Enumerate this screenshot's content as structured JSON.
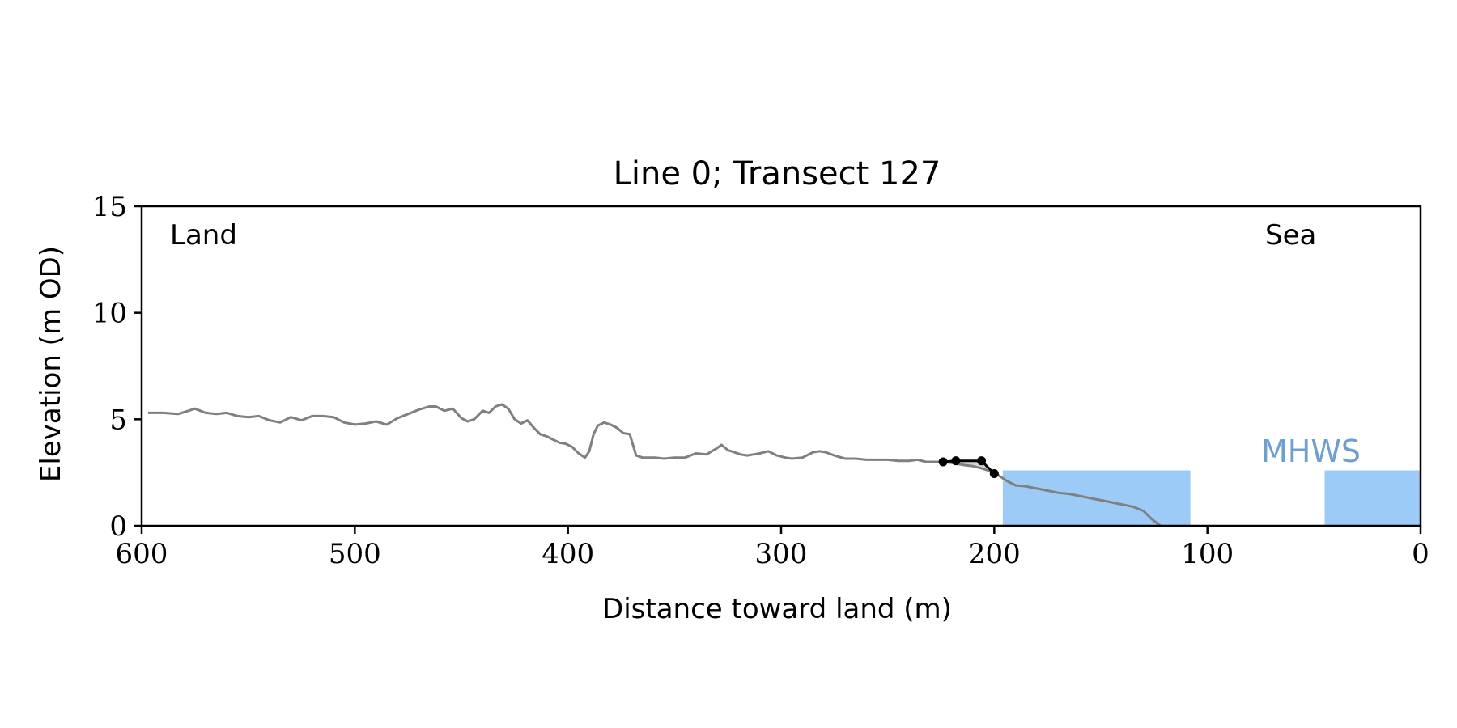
{
  "chart_data": {
    "type": "line",
    "title": "Line 0; Transect 127",
    "xlabel": "Distance toward land (m)",
    "ylabel": "Elevation (m OD)",
    "xlim": [
      600,
      0
    ],
    "ylim": [
      0,
      15
    ],
    "x_ticks": [
      600,
      500,
      400,
      300,
      200,
      100,
      0
    ],
    "y_ticks": [
      0,
      5,
      10,
      15
    ],
    "annotations": {
      "left": "Land",
      "right": "Sea",
      "water_label": "MHWS"
    },
    "colors": {
      "profile": "#808080",
      "feature": "#000000",
      "water": "#9dcbf7",
      "water_label": "#6f9fcf",
      "fill": "#d3d3d3"
    },
    "mhws": {
      "elevation": 2.6,
      "segments": [
        [
          196,
          108
        ],
        [
          45,
          0
        ]
      ]
    },
    "profile": {
      "name": "",
      "x": [
        597,
        590,
        583,
        578,
        575,
        570,
        565,
        560,
        555,
        550,
        545,
        540,
        535,
        530,
        525,
        520,
        515,
        510,
        505,
        500,
        495,
        490,
        485,
        480,
        475,
        470,
        465,
        462,
        458,
        454,
        450,
        447,
        444,
        440,
        437,
        434,
        431,
        428,
        425,
        422,
        419,
        416,
        413,
        410,
        407,
        404,
        401,
        398,
        395,
        392,
        390,
        388,
        386,
        383,
        380,
        377,
        374,
        371,
        368,
        365,
        362,
        359,
        355,
        350,
        345,
        340,
        335,
        330,
        328,
        325,
        322,
        319,
        316,
        313,
        310,
        306,
        302,
        298,
        295,
        290,
        285,
        282,
        279,
        275,
        270,
        265,
        260,
        255,
        250,
        245,
        240,
        236,
        232,
        228,
        224,
        220,
        217,
        214,
        210,
        206,
        203,
        200,
        197,
        194,
        190,
        185,
        180,
        175,
        170,
        165,
        160,
        155,
        150,
        145,
        140,
        135,
        130,
        126,
        122
      ],
      "y": [
        5.3,
        5.3,
        5.25,
        5.4,
        5.5,
        5.3,
        5.25,
        5.3,
        5.15,
        5.1,
        5.15,
        4.95,
        4.85,
        5.1,
        4.95,
        5.15,
        5.15,
        5.1,
        4.85,
        4.75,
        4.8,
        4.9,
        4.75,
        5.05,
        5.25,
        5.45,
        5.6,
        5.6,
        5.4,
        5.5,
        5.05,
        4.9,
        5.0,
        5.4,
        5.3,
        5.6,
        5.7,
        5.5,
        5.0,
        4.8,
        4.95,
        4.6,
        4.3,
        4.2,
        4.05,
        3.9,
        3.85,
        3.7,
        3.4,
        3.2,
        3.5,
        4.3,
        4.7,
        4.85,
        4.75,
        4.6,
        4.35,
        4.3,
        3.3,
        3.2,
        3.2,
        3.2,
        3.15,
        3.2,
        3.2,
        3.4,
        3.35,
        3.65,
        3.8,
        3.55,
        3.45,
        3.35,
        3.3,
        3.35,
        3.4,
        3.5,
        3.3,
        3.2,
        3.15,
        3.2,
        3.45,
        3.5,
        3.45,
        3.3,
        3.15,
        3.15,
        3.1,
        3.1,
        3.1,
        3.05,
        3.05,
        3.1,
        3.0,
        3.0,
        3.0,
        2.95,
        2.9,
        2.85,
        2.8,
        2.7,
        2.6,
        2.5,
        2.3,
        2.1,
        1.9,
        1.85,
        1.75,
        1.65,
        1.55,
        1.5,
        1.4,
        1.3,
        1.2,
        1.1,
        1.0,
        0.9,
        0.7,
        0.3,
        0.0
      ]
    },
    "feature": {
      "x": [
        224,
        218,
        206,
        200
      ],
      "y": [
        3.0,
        3.05,
        3.05,
        2.45
      ]
    }
  }
}
